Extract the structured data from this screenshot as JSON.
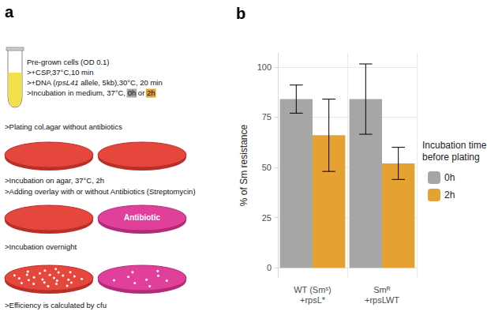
{
  "diagram": {
    "label": "a",
    "steps": [
      [
        {
          "t": "Pre-grown cells (OD 0.1)"
        }
      ],
      [
        {
          "t": ">+CSP,37°C,10 min"
        }
      ],
      [
        {
          "t": ">+DNA ("
        },
        {
          "t": "rpsL41",
          "italic": true
        },
        {
          "t": " allele, 5kb),30°C, 20 min"
        }
      ],
      [
        {
          "t": ">Incubation in medium, 37°C, "
        },
        {
          "t": "0h",
          "highlight": "#a6a6a6"
        },
        {
          "t": " or "
        },
        {
          "t": "2h",
          "highlight": "#e5a232"
        }
      ],
      [
        {
          "t": ">Plating col.agar without antibiotics"
        }
      ],
      [
        {
          "t": ">Incubation on agar, 37°C, 2h"
        }
      ],
      [
        {
          "t": ">Adding overlay with or without Antibiotics (Streptomycin)"
        }
      ],
      [
        {
          "t": ">Incubation overnight"
        }
      ],
      [
        {
          "t": ">Efficiency is calculated by cfu"
        }
      ]
    ],
    "plate_label": "Antibiotic"
  },
  "chart_data": {
    "type": "bar",
    "title": "b",
    "categories": [
      "WT (Smˢ)\n+rpsL*",
      "Smᴿ\n+rpsLWT"
    ],
    "y_label": "% of Sm resistance",
    "ylim": [
      -5,
      107
    ],
    "yticks": [
      0,
      25,
      50,
      75,
      100
    ],
    "grid": true,
    "legend": "right",
    "legend_title": "Incubation time\nbefore plating",
    "series": [
      {
        "name": "0h",
        "color": "#a6a6a6",
        "values": [
          84,
          84
        ],
        "errors": [
          7,
          17.5
        ]
      },
      {
        "name": "2h",
        "color": "#e5a232",
        "values": [
          66,
          52
        ],
        "errors": [
          18,
          8
        ]
      }
    ]
  }
}
